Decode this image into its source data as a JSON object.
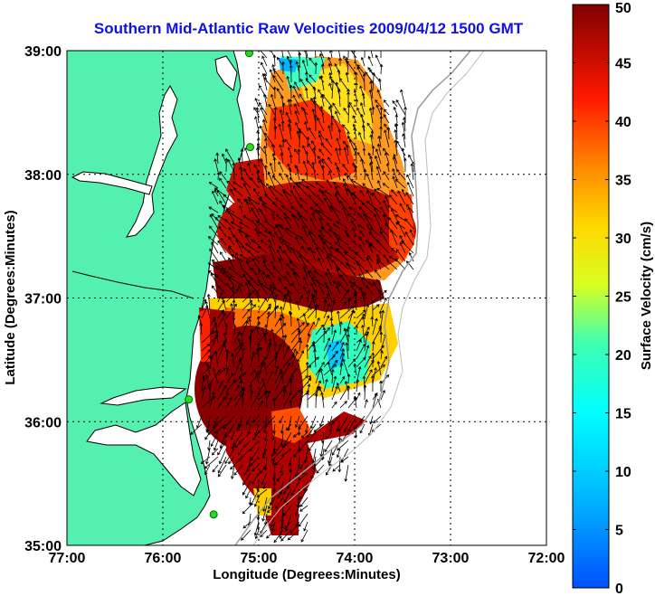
{
  "title": "Southern Mid-Atlantic Raw Velocities 2009/04/12 1500 GMT",
  "xaxis": {
    "label": "Longitude (Degrees:Minutes)",
    "ticks": [
      "77:00",
      "76:00",
      "75:00",
      "74:00",
      "73:00",
      "72:00"
    ]
  },
  "yaxis": {
    "label": "Latitude (Degrees:Minutes)",
    "ticks": [
      "39:00",
      "38:00",
      "37:00",
      "36:00",
      "35:00"
    ]
  },
  "colorbar": {
    "label": "Surface Velocity (cm/s)",
    "ticks": [
      "50",
      "45",
      "40",
      "35",
      "30",
      "25",
      "20",
      "15",
      "10",
      "5",
      "0"
    ],
    "range": [
      0,
      50
    ]
  },
  "colors": {
    "land": "#54f0b0",
    "title": "#1010e8",
    "station": "#22dd22"
  },
  "map": {
    "lon_range": [
      -77,
      -72
    ],
    "lat_range": [
      35,
      39
    ],
    "stations": [
      {
        "lon": -75.1,
        "lat": 38.98
      },
      {
        "lon": -75.09,
        "lat": 38.22
      },
      {
        "lon": -75.73,
        "lat": 36.18
      },
      {
        "lon": -75.47,
        "lat": 35.25
      }
    ]
  }
}
